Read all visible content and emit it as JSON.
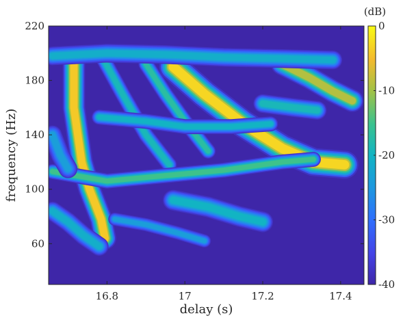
{
  "chart_data": {
    "type": "heatmap",
    "xlabel": "delay (s)",
    "ylabel": "frequency (Hz)",
    "xlim": [
      16.65,
      17.46
    ],
    "ylim": [
      30,
      220
    ],
    "xticks": [
      "16.8",
      "17",
      "17.2",
      "17.4"
    ],
    "xtick_values": [
      16.8,
      17.0,
      17.2,
      17.4
    ],
    "yticks": [
      "60",
      "100",
      "140",
      "180",
      "220"
    ],
    "ytick_values": [
      60,
      100,
      140,
      180,
      220
    ],
    "colorbar": {
      "unit": "(dB)",
      "ticks": [
        "0",
        "-10",
        "-20",
        "-30",
        "-40"
      ],
      "tick_values": [
        0,
        -10,
        -20,
        -30,
        -40
      ],
      "range": [
        -40,
        0
      ],
      "colormap": "parula"
    },
    "background_level_db": -40,
    "features": [
      {
        "kind": "ridge",
        "db": -4,
        "width_s": 0.024,
        "path": [
          [
            16.715,
            196
          ],
          [
            16.715,
            160
          ],
          [
            16.735,
            120
          ],
          [
            16.755,
            100
          ],
          [
            16.785,
            78
          ],
          [
            16.795,
            64
          ]
        ]
      },
      {
        "kind": "ridge",
        "db": -3,
        "width_s": 0.03,
        "path": [
          [
            16.97,
            190
          ],
          [
            17.05,
            170
          ],
          [
            17.15,
            148
          ],
          [
            17.25,
            130
          ],
          [
            17.33,
            120
          ],
          [
            17.41,
            118
          ]
        ]
      },
      {
        "kind": "ridge",
        "db": -9,
        "width_s": 0.024,
        "path": [
          [
            17.25,
            192
          ],
          [
            17.32,
            182
          ],
          [
            17.38,
            172
          ],
          [
            17.43,
            165
          ]
        ]
      },
      {
        "kind": "ridge",
        "db": -19,
        "width_s": 0.016,
        "path": [
          [
            16.79,
            196
          ],
          [
            16.84,
            170
          ],
          [
            16.9,
            140
          ],
          [
            16.96,
            118
          ]
        ]
      },
      {
        "kind": "ridge",
        "db": -17,
        "width_s": 0.016,
        "path": [
          [
            16.9,
            192
          ],
          [
            16.95,
            170
          ],
          [
            17.0,
            150
          ],
          [
            17.06,
            128
          ]
        ]
      },
      {
        "kind": "ridge",
        "db": -21,
        "width_s": 0.02,
        "path": [
          [
            16.66,
            198
          ],
          [
            16.8,
            200
          ],
          [
            16.95,
            199
          ],
          [
            17.1,
            197
          ],
          [
            17.25,
            196
          ],
          [
            17.38,
            195
          ]
        ]
      },
      {
        "kind": "ridge",
        "db": -15,
        "width_s": 0.016,
        "path": [
          [
            16.66,
            113
          ],
          [
            16.8,
            106
          ],
          [
            16.95,
            110
          ],
          [
            17.1,
            114
          ],
          [
            17.25,
            120
          ],
          [
            17.33,
            122
          ]
        ]
      },
      {
        "kind": "ridge",
        "db": -20,
        "width_s": 0.016,
        "path": [
          [
            16.78,
            153
          ],
          [
            16.9,
            150
          ],
          [
            17.0,
            146
          ],
          [
            17.12,
            146
          ],
          [
            17.22,
            148
          ]
        ]
      },
      {
        "kind": "ridge",
        "db": -19,
        "width_s": 0.02,
        "path": [
          [
            17.2,
            163
          ],
          [
            17.28,
            160
          ],
          [
            17.34,
            158
          ]
        ]
      },
      {
        "kind": "ridge",
        "db": -20,
        "width_s": 0.022,
        "path": [
          [
            16.97,
            92
          ],
          [
            17.06,
            87
          ],
          [
            17.14,
            80
          ],
          [
            17.2,
            76
          ]
        ]
      },
      {
        "kind": "ridge",
        "db": -24,
        "width_s": 0.014,
        "path": [
          [
            16.82,
            78
          ],
          [
            16.9,
            74
          ],
          [
            16.98,
            68
          ],
          [
            17.05,
            62
          ]
        ]
      },
      {
        "kind": "ridge",
        "db": -21,
        "width_s": 0.02,
        "path": [
          [
            16.66,
            84
          ],
          [
            16.7,
            76
          ],
          [
            16.74,
            66
          ],
          [
            16.78,
            58
          ]
        ]
      },
      {
        "kind": "ridge",
        "db": -24,
        "width_s": 0.02,
        "path": [
          [
            16.66,
            140
          ],
          [
            16.68,
            125
          ],
          [
            16.7,
            115
          ]
        ]
      }
    ]
  }
}
